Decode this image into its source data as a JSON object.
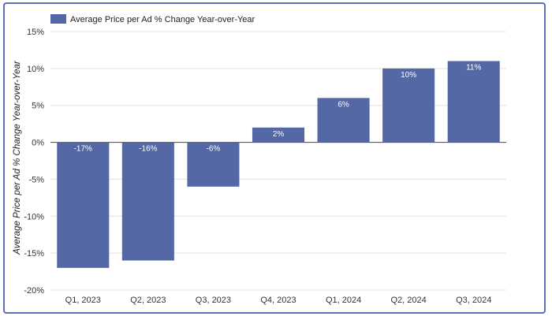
{
  "chart_data": {
    "type": "bar",
    "categories": [
      "Q1, 2023",
      "Q2, 2023",
      "Q3, 2023",
      "Q4, 2023",
      "Q1, 2024",
      "Q2, 2024",
      "Q3, 2024"
    ],
    "series": [
      {
        "name": "Average Price per Ad % Change Year-over-Year",
        "values": [
          -17,
          -16,
          -6,
          2,
          6,
          10,
          11
        ],
        "data_labels": [
          "-17%",
          "-16%",
          "-6%",
          "2%",
          "6%",
          "10%",
          "11%"
        ],
        "color": "#5468a5"
      }
    ],
    "ylabel": "Average Price per Ad % Change Year-over-Year",
    "xlabel": "",
    "ylim": [
      -20,
      15
    ],
    "yticks": [
      15,
      10,
      5,
      0,
      -5,
      -10,
      -15,
      -20
    ],
    "ytick_labels": [
      "15%",
      "10%",
      "5%",
      "0%",
      "-5%",
      "-10%",
      "-15%",
      "-20%"
    ],
    "grid": true,
    "legend_position": "top-left"
  },
  "colors": {
    "frame_border": "#5b73b6",
    "bar": "#5468a5",
    "grid": "#e0e0e0",
    "axis": "#444444"
  }
}
